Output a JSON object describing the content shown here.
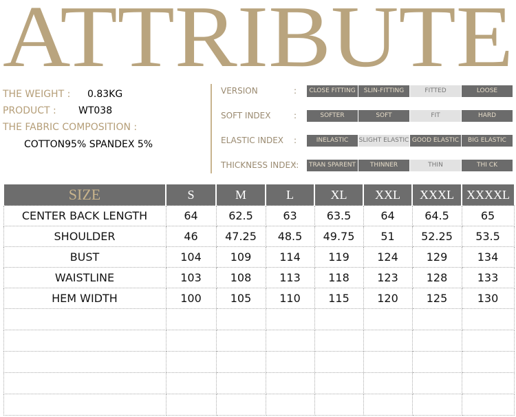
{
  "title": "ATTRIBUTE",
  "info": {
    "weight_label": "THE WEIGHT :",
    "weight": "0.83KG",
    "product_label": "PRODUCT :",
    "product": "WT038",
    "fabric_label": "THE FABRIC COMPOSITION :",
    "fabric": "COTTON95% SPANDEX 5%"
  },
  "attributes": [
    {
      "label": "VERSION",
      "colon": ":",
      "options": [
        "CLOSE FITTING",
        "SLIN-FITTING",
        "FITTED",
        "LOOSE"
      ],
      "selected": 2
    },
    {
      "label": "SOFT INDEX",
      "colon": ":",
      "options": [
        "SOFTER",
        "SOFT",
        "FIT",
        "HARD"
      ],
      "selected": 2
    },
    {
      "label": "ELASTIC INDEX",
      "colon": ":",
      "options": [
        "INELASTIC",
        "SLIGHT ELASTIC",
        "GOOD ELASTIC",
        "BIG ELASTIC"
      ],
      "selected": 1
    },
    {
      "label": "THICKNESS INDEX:",
      "colon": ":",
      "options": [
        "TRAN SPARENT",
        "THINNER",
        "THIN",
        "THI CK"
      ],
      "selected": 2
    }
  ],
  "table": {
    "header": [
      "SIZE",
      "S",
      "M",
      "L",
      "XL",
      "XXL",
      "XXXL",
      "XXXXL"
    ],
    "rows": [
      [
        "CENTER BACK LENGTH",
        64,
        62.5,
        63,
        63.5,
        64,
        64.5,
        65
      ],
      [
        "SHOULDER",
        46,
        47.25,
        48.5,
        49.75,
        51,
        52.25,
        53.5
      ],
      [
        "BUST",
        104,
        109,
        114,
        119,
        124,
        129,
        134
      ],
      [
        "WAISTLINE",
        103,
        108,
        113,
        118,
        123,
        128,
        133
      ],
      [
        "HEM WIDTH",
        100,
        105,
        110,
        115,
        120,
        125,
        130
      ]
    ]
  }
}
